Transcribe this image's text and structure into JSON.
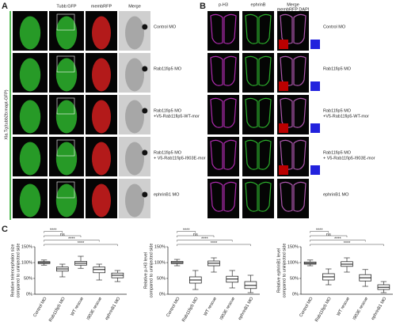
{
  "panel_a": {
    "label": "A",
    "side_label": "Xla.Tg(tubb2b:mapt-GFP)",
    "columns": [
      "Tubb:GFP",
      "membRFP",
      "Merge"
    ],
    "rows": [
      [
        "Control MO"
      ],
      [
        "Rab11fip5 MO"
      ],
      [
        "Rab11fip5 MO",
        "+V5-Rab11fip5-WT-mor"
      ],
      [
        "Rab11fip5 MO",
        "+ V5-Rab11fip5-I903E-mor"
      ],
      [
        "ephrinB1 MO"
      ]
    ]
  },
  "panel_b": {
    "label": "B",
    "columns": [
      "p-H3",
      "ephrinB",
      "Merge"
    ],
    "merge_sublabel": "membRFP DAPI",
    "rows": [
      [
        "Control MO"
      ],
      [
        "Rab11fip5 MO"
      ],
      [
        "Rab11fip5 MO",
        "+V5-Rab11fip5-WT-mor"
      ],
      [
        "Rab11fip5 MO",
        "+ V5-Rab11fip5-I903E-mor"
      ],
      [
        "ephrinB1 MO"
      ]
    ]
  },
  "panel_c": {
    "label": "C"
  },
  "chart_data": [
    {
      "type": "box",
      "ylabel": [
        "Relative telencephalon size",
        "compared to uninjected side"
      ],
      "categories": [
        "Control MO",
        "Rab11fip5 MO",
        "WT rescue",
        "I903E rescue",
        "ephrinB1 MO"
      ],
      "boxes": [
        {
          "min": 92,
          "q1": 97,
          "median": 100,
          "q3": 103,
          "max": 108
        },
        {
          "min": 55,
          "q1": 73,
          "median": 80,
          "q3": 86,
          "max": 95
        },
        {
          "min": 82,
          "q1": 92,
          "median": 98,
          "q3": 104,
          "max": 120
        },
        {
          "min": 45,
          "q1": 68,
          "median": 78,
          "q3": 86,
          "max": 95
        },
        {
          "min": 40,
          "q1": 52,
          "median": 60,
          "q3": 67,
          "max": 75
        }
      ],
      "significance": [
        "****",
        "ns",
        "****",
        "****"
      ],
      "ylim": [
        0,
        150
      ],
      "yticks": [
        {
          "value": 0,
          "label": "0%"
        },
        {
          "value": 50,
          "label": "50%"
        },
        {
          "value": 100,
          "label": "100%"
        },
        {
          "value": 150,
          "label": "150%"
        }
      ]
    },
    {
      "type": "box",
      "ylabel": [
        "Relative p-H3 level",
        "compared to uninjected side"
      ],
      "categories": [
        "Control MO",
        "Rab11fip5 MO",
        "WT rescue",
        "I903E rescue",
        "ephrinB1 MO"
      ],
      "boxes": [
        {
          "min": 90,
          "q1": 97,
          "median": 100,
          "q3": 104,
          "max": 110
        },
        {
          "min": 15,
          "q1": 35,
          "median": 45,
          "q3": 55,
          "max": 75
        },
        {
          "min": 70,
          "q1": 90,
          "median": 98,
          "q3": 105,
          "max": 115
        },
        {
          "min": 20,
          "q1": 38,
          "median": 48,
          "q3": 57,
          "max": 75
        },
        {
          "min": 5,
          "q1": 18,
          "median": 28,
          "q3": 40,
          "max": 60
        }
      ],
      "significance": [
        "****",
        "ns",
        "****",
        "****"
      ],
      "ylim": [
        0,
        150
      ],
      "yticks": [
        {
          "value": 0,
          "label": "0%"
        },
        {
          "value": 50,
          "label": "50%"
        },
        {
          "value": 100,
          "label": "100%"
        },
        {
          "value": 150,
          "label": "150%"
        }
      ]
    },
    {
      "type": "box",
      "ylabel": [
        "Relative ephrinB1 level",
        "compared to uninjected side"
      ],
      "categories": [
        "Control MO",
        "Rab11fip5 MO",
        "WT rescue",
        "I903E rescue",
        "ephrinB1 MO"
      ],
      "boxes": [
        {
          "min": 90,
          "q1": 95,
          "median": 98,
          "q3": 102,
          "max": 108
        },
        {
          "min": 30,
          "q1": 45,
          "median": 55,
          "q3": 65,
          "max": 80
        },
        {
          "min": 70,
          "q1": 88,
          "median": 95,
          "q3": 103,
          "max": 115
        },
        {
          "min": 25,
          "q1": 42,
          "median": 52,
          "q3": 62,
          "max": 78
        },
        {
          "min": 5,
          "q1": 15,
          "median": 22,
          "q3": 30,
          "max": 40
        }
      ],
      "significance": [
        "****",
        "ns",
        "****",
        "****"
      ],
      "ylim": [
        0,
        150
      ],
      "yticks": [
        {
          "value": 0,
          "label": "0%"
        },
        {
          "value": 50,
          "label": "50%"
        },
        {
          "value": 100,
          "label": "100%"
        },
        {
          "value": 150,
          "label": "150%"
        }
      ]
    }
  ]
}
